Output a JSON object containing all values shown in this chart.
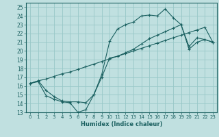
{
  "xlabel": "Humidex (Indice chaleur)",
  "bg_color": "#c0e0e0",
  "grid_color": "#98c8c8",
  "line_color": "#1a6060",
  "xlim": [
    -0.5,
    23.5
  ],
  "ylim": [
    13,
    25.5
  ],
  "xticks": [
    0,
    1,
    2,
    3,
    4,
    5,
    6,
    7,
    8,
    9,
    10,
    11,
    12,
    13,
    14,
    15,
    16,
    17,
    18,
    19,
    20,
    21,
    22,
    23
  ],
  "yticks": [
    13,
    14,
    15,
    16,
    17,
    18,
    19,
    20,
    21,
    22,
    23,
    24,
    25
  ],
  "line1_x": [
    0,
    1,
    2,
    3,
    4,
    5,
    6,
    7,
    8,
    9,
    10,
    11,
    12,
    13,
    14,
    15,
    16,
    17,
    18,
    19,
    20,
    21,
    22,
    23
  ],
  "line1_y": [
    16.3,
    16.6,
    15.5,
    14.8,
    14.3,
    14.2,
    14.2,
    14.1,
    15.0,
    17.3,
    21.1,
    22.5,
    23.0,
    23.3,
    24.0,
    24.1,
    24.0,
    24.8,
    23.8,
    23.0,
    20.5,
    21.5,
    21.3,
    21.0
  ],
  "line2_x": [
    0,
    1,
    2,
    3,
    4,
    5,
    6,
    7,
    8,
    9,
    10,
    11,
    12,
    13,
    14,
    15,
    16,
    17,
    18,
    19,
    20,
    21,
    22,
    23
  ],
  "line2_y": [
    16.3,
    16.6,
    16.8,
    17.1,
    17.4,
    17.6,
    17.9,
    18.2,
    18.5,
    18.8,
    19.1,
    19.4,
    19.7,
    20.0,
    20.3,
    20.6,
    20.9,
    21.2,
    21.5,
    21.8,
    22.1,
    22.4,
    22.7,
    21.0
  ],
  "line3_x": [
    0,
    1,
    2,
    3,
    4,
    5,
    6,
    7,
    8,
    9,
    10,
    11,
    12,
    13,
    14,
    15,
    16,
    17,
    18,
    19,
    20,
    21,
    22,
    23
  ],
  "line3_y": [
    16.3,
    16.5,
    14.9,
    14.5,
    14.2,
    14.1,
    13.0,
    13.3,
    15.0,
    17.0,
    19.2,
    19.4,
    19.8,
    20.2,
    20.8,
    21.4,
    21.8,
    22.2,
    22.6,
    23.0,
    20.2,
    21.0,
    21.3,
    21.0
  ]
}
